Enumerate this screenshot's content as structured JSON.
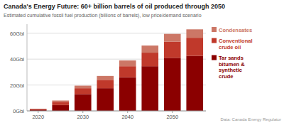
{
  "chart_data": {
    "type": "bar",
    "title": "Canada's Energy Future: 60+ billion barrels of oil produced through 2050",
    "subtitle": "Estimated cumulative fossil fuel production (billions of barrels), low price/demand scenario",
    "source": "Data: Canada Energy Regulator",
    "categories": [
      "2020",
      null,
      "2030",
      null,
      "2040",
      null,
      "2050",
      null
    ],
    "series": [
      {
        "name": "Tar sands\nbitumen &\nsynthetic\ncrude",
        "color": "#8B0000",
        "values": [
          1.0,
          4.5,
          13.0,
          17.5,
          26.0,
          34.5,
          41.0,
          42.5
        ]
      },
      {
        "name": "Conventional\ncrude oil",
        "color": "#C0392B",
        "values": [
          0.5,
          2.5,
          4.5,
          6.5,
          8.5,
          10.5,
          12.5,
          14.0
        ]
      },
      {
        "name": "Condensates",
        "color": "#CC7766",
        "values": [
          0.2,
          1.0,
          2.0,
          3.0,
          4.5,
          5.5,
          6.0,
          6.5
        ]
      }
    ],
    "stacked": true,
    "ylim": [
      0,
      67
    ],
    "yticks": [
      {
        "value": 0,
        "label": "0Gbl"
      },
      {
        "value": 20,
        "label": "20Gbl"
      },
      {
        "value": 40,
        "label": "40Gbl"
      },
      {
        "value": 60,
        "label": "60Gbl"
      }
    ],
    "grid": true,
    "legend": "right"
  }
}
